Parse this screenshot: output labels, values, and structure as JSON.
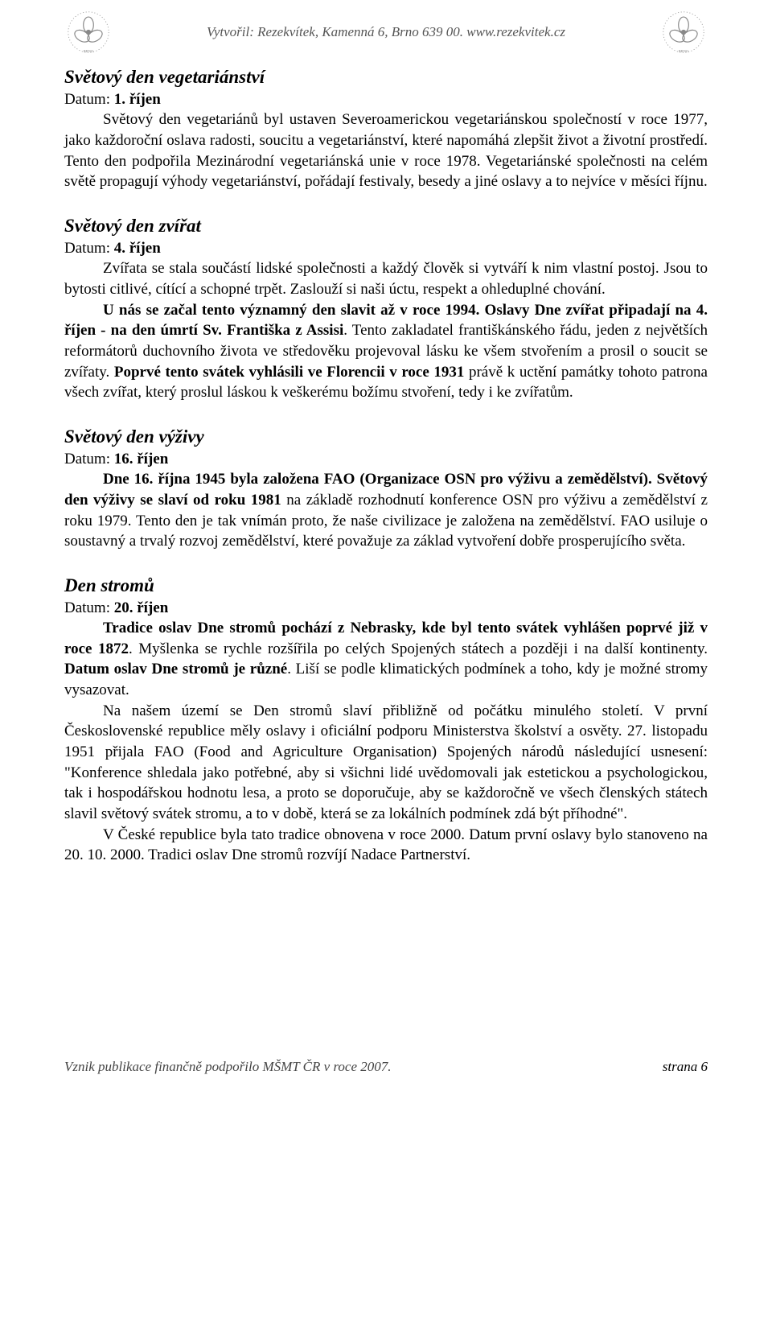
{
  "header": {
    "text": "Vytvořil: Rezekvítek, Kamenná 6, Brno 639 00. www.rezekvitek.cz",
    "logo_alt": "Rezekvítek"
  },
  "sections": [
    {
      "title": "Světový den vegetariánství",
      "date_label": "Datum: ",
      "date_value": "1. říjen",
      "paragraphs": [
        {
          "indent": true,
          "runs": [
            {
              "text": "Světový den vegetariánů byl ustaven Severoamerickou vegetariánskou společností v roce 1977, jako každoroční oslava radosti, soucitu a vegetariánství, které napomáhá zlepšit život a životní prostředí. Tento den podpořila Mezinárodní vegetariánská unie v roce 1978. Vegetariánské společnosti na celém světě propagují výhody vegetariánství, pořádají festivaly, besedy a jiné oslavy a to nejvíce v měsíci říjnu.",
              "bold": false
            }
          ]
        }
      ]
    },
    {
      "title": "Světový den zvířat",
      "date_label": "Datum: ",
      "date_value": "4. říjen",
      "paragraphs": [
        {
          "indent": true,
          "runs": [
            {
              "text": "Zvířata se stala součástí lidské společnosti a každý člověk si vytváří k nim vlastní postoj. Jsou to bytosti citlivé, cítící a schopné trpět. Zaslouží si naši úctu, respekt a ohleduplné chování.",
              "bold": false
            }
          ]
        },
        {
          "indent": true,
          "runs": [
            {
              "text": "U nás se začal tento významný den slavit až v roce 1994. Oslavy Dne zvířat připadají na 4. říjen - na den úmrtí Sv. Františka z Assisi",
              "bold": true
            },
            {
              "text": ". Tento zakladatel františkánského řádu, jeden z největších reformátorů duchovního života ve středověku  projevoval lásku ke všem stvořením a prosil o soucit se zvířaty. ",
              "bold": false
            },
            {
              "text": "Poprvé tento svátek vyhlásili ve Florencii v roce 1931",
              "bold": true
            },
            {
              "text": " právě k uctění památky tohoto patrona všech zvířat, který proslul láskou k veškerému božímu stvoření, tedy i ke zvířatům.",
              "bold": false
            }
          ]
        }
      ]
    },
    {
      "title": "Světový den výživy",
      "date_label": "Datum: ",
      "date_value": "16. říjen",
      "paragraphs": [
        {
          "indent": true,
          "runs": [
            {
              "text": "Dne 16. října 1945 byla založena FAO (Organizace OSN pro výživu a zemědělství). Světový den výživy se slaví od roku 1981",
              "bold": true
            },
            {
              "text": " na základě rozhodnutí konference OSN pro výživu a zemědělství z roku 1979. Tento den je tak vnímán proto, že naše civilizace je založena na zemědělství. FAO usiluje o soustavný a trvalý rozvoj zemědělství, které považuje za základ vytvoření dobře prosperujícího světa.",
              "bold": false
            }
          ]
        }
      ]
    },
    {
      "title": "Den stromů",
      "date_label": "Datum: ",
      "date_value": "20. říjen",
      "paragraphs": [
        {
          "indent": true,
          "runs": [
            {
              "text": "Tradice oslav Dne stromů pochází z Nebrasky, kde byl tento svátek vyhlášen poprvé již v roce 1872",
              "bold": true
            },
            {
              "text": ". Myšlenka se rychle rozšířila po celých Spojených státech a později i na další kontinenty. ",
              "bold": false
            },
            {
              "text": "Datum oslav Dne stromů je různé",
              "bold": true
            },
            {
              "text": ". Liší se podle klimatických podmínek a toho, kdy je možné stromy vysazovat.",
              "bold": false
            }
          ]
        },
        {
          "indent": true,
          "runs": [
            {
              "text": "Na našem území se Den stromů slaví přibližně od počátku minulého století. V první Československé republice měly oslavy i oficiální podporu Ministerstva školství a osvěty. 27. listopadu 1951 přijala FAO (Food and Agriculture Organisation) Spojených národů následující usnesení: \"Konference shledala jako potřebné, aby si všichni lidé uvědomovali jak estetickou a psychologickou, tak i hospodářskou hodnotu lesa, a proto se doporučuje, aby se každoročně ve všech členských státech slavil světový svátek stromu, a to v době, která se za lokálních podmínek zdá být příhodné\".",
              "bold": false
            }
          ]
        },
        {
          "indent": true,
          "runs": [
            {
              "text": "V České republice byla tato tradice obnovena v roce 2000. Datum první oslavy bylo stanoveno na 20. 10. 2000. Tradici oslav Dne stromů rozvíjí Nadace Partnerství.",
              "bold": false
            }
          ]
        }
      ]
    }
  ],
  "footer": {
    "left": "Vznik publikace finančně podpořilo MŠMT ČR v roce 2007.",
    "right": "strana 6"
  },
  "colors": {
    "background": "#ffffff",
    "text": "#000000",
    "header_text": "#555555",
    "footer_text": "#444444"
  },
  "fontsizes": {
    "body": 19,
    "title": 23,
    "header": 17,
    "footer": 17
  }
}
